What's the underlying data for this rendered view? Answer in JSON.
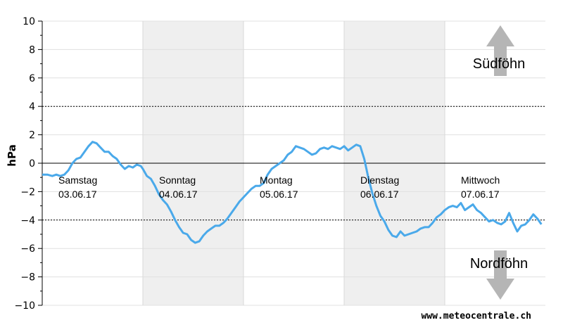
{
  "chart_data": {
    "type": "line",
    "ylabel": "hPa",
    "ylim": [
      -10,
      10
    ],
    "yticks": [
      10,
      8,
      6,
      4,
      2,
      0,
      -2,
      -4,
      -6,
      -8,
      -10
    ],
    "ytick_labels": [
      "10",
      "8",
      "6",
      "4",
      "2",
      "0",
      "−2",
      "−4",
      "−6",
      "−8",
      "−10"
    ],
    "xlim": [
      0,
      5
    ],
    "x_unit": "days",
    "grid": true,
    "reference_lines": [
      4,
      -4
    ],
    "shaded_days": [
      1,
      3
    ],
    "days": [
      {
        "name": "Samstag",
        "date": "03.06.17"
      },
      {
        "name": "Sonntag",
        "date": "04.06.17"
      },
      {
        "name": "Montag",
        "date": "05.06.17"
      },
      {
        "name": "Dienstag",
        "date": "06.06.17"
      },
      {
        "name": "Mittwoch",
        "date": "07.06.17"
      }
    ],
    "annotations": {
      "upper": "Südföhn",
      "lower": "Nordföhn"
    },
    "series": [
      {
        "color": "#4aa9ea",
        "points": [
          [
            0.0,
            -0.8
          ],
          [
            0.05,
            -0.8
          ],
          [
            0.1,
            -0.9
          ],
          [
            0.14,
            -0.8
          ],
          [
            0.18,
            -0.9
          ],
          [
            0.22,
            -0.8
          ],
          [
            0.26,
            -0.5
          ],
          [
            0.3,
            0.0
          ],
          [
            0.34,
            0.3
          ],
          [
            0.38,
            0.4
          ],
          [
            0.42,
            0.8
          ],
          [
            0.46,
            1.2
          ],
          [
            0.5,
            1.5
          ],
          [
            0.54,
            1.4
          ],
          [
            0.58,
            1.1
          ],
          [
            0.62,
            0.8
          ],
          [
            0.66,
            0.8
          ],
          [
            0.7,
            0.5
          ],
          [
            0.74,
            0.3
          ],
          [
            0.78,
            -0.1
          ],
          [
            0.82,
            -0.4
          ],
          [
            0.86,
            -0.2
          ],
          [
            0.9,
            -0.3
          ],
          [
            0.94,
            -0.1
          ],
          [
            0.98,
            -0.2
          ],
          [
            1.0,
            -0.4
          ],
          [
            1.04,
            -0.9
          ],
          [
            1.08,
            -1.1
          ],
          [
            1.12,
            -1.6
          ],
          [
            1.16,
            -2.2
          ],
          [
            1.2,
            -2.6
          ],
          [
            1.24,
            -2.9
          ],
          [
            1.28,
            -3.4
          ],
          [
            1.32,
            -4.0
          ],
          [
            1.36,
            -4.5
          ],
          [
            1.4,
            -4.9
          ],
          [
            1.44,
            -5.0
          ],
          [
            1.48,
            -5.4
          ],
          [
            1.52,
            -5.6
          ],
          [
            1.56,
            -5.5
          ],
          [
            1.6,
            -5.1
          ],
          [
            1.64,
            -4.8
          ],
          [
            1.68,
            -4.6
          ],
          [
            1.72,
            -4.4
          ],
          [
            1.76,
            -4.4
          ],
          [
            1.8,
            -4.2
          ],
          [
            1.84,
            -3.9
          ],
          [
            1.88,
            -3.5
          ],
          [
            1.92,
            -3.1
          ],
          [
            1.96,
            -2.7
          ],
          [
            2.0,
            -2.4
          ],
          [
            2.04,
            -2.1
          ],
          [
            2.08,
            -1.8
          ],
          [
            2.12,
            -1.6
          ],
          [
            2.16,
            -1.6
          ],
          [
            2.2,
            -1.4
          ],
          [
            2.24,
            -0.8
          ],
          [
            2.28,
            -0.4
          ],
          [
            2.32,
            -0.2
          ],
          [
            2.36,
            0.0
          ],
          [
            2.4,
            0.2
          ],
          [
            2.44,
            0.6
          ],
          [
            2.48,
            0.8
          ],
          [
            2.52,
            1.2
          ],
          [
            2.56,
            1.1
          ],
          [
            2.6,
            1.0
          ],
          [
            2.64,
            0.8
          ],
          [
            2.68,
            0.6
          ],
          [
            2.72,
            0.7
          ],
          [
            2.76,
            1.0
          ],
          [
            2.8,
            1.1
          ],
          [
            2.84,
            1.0
          ],
          [
            2.88,
            1.2
          ],
          [
            2.92,
            1.1
          ],
          [
            2.96,
            1.0
          ],
          [
            3.0,
            1.2
          ],
          [
            3.04,
            0.9
          ],
          [
            3.08,
            1.1
          ],
          [
            3.12,
            1.3
          ],
          [
            3.16,
            1.2
          ],
          [
            3.2,
            0.3
          ],
          [
            3.24,
            -1.0
          ],
          [
            3.28,
            -2.1
          ],
          [
            3.32,
            -3.0
          ],
          [
            3.36,
            -3.7
          ],
          [
            3.4,
            -4.1
          ],
          [
            3.44,
            -4.7
          ],
          [
            3.48,
            -5.1
          ],
          [
            3.52,
            -5.2
          ],
          [
            3.56,
            -4.8
          ],
          [
            3.6,
            -5.1
          ],
          [
            3.64,
            -5.0
          ],
          [
            3.68,
            -4.9
          ],
          [
            3.72,
            -4.8
          ],
          [
            3.76,
            -4.6
          ],
          [
            3.8,
            -4.5
          ],
          [
            3.84,
            -4.5
          ],
          [
            3.88,
            -4.2
          ],
          [
            3.92,
            -3.8
          ],
          [
            3.96,
            -3.6
          ],
          [
            4.0,
            -3.3
          ],
          [
            4.04,
            -3.1
          ],
          [
            4.08,
            -3.0
          ],
          [
            4.12,
            -3.1
          ],
          [
            4.16,
            -2.8
          ],
          [
            4.2,
            -3.3
          ],
          [
            4.24,
            -3.1
          ],
          [
            4.28,
            -2.9
          ],
          [
            4.32,
            -3.3
          ],
          [
            4.36,
            -3.5
          ],
          [
            4.4,
            -3.8
          ],
          [
            4.44,
            -4.1
          ],
          [
            4.48,
            -4.0
          ],
          [
            4.52,
            -4.2
          ],
          [
            4.56,
            -4.3
          ],
          [
            4.6,
            -4.1
          ],
          [
            4.64,
            -3.5
          ],
          [
            4.68,
            -4.2
          ],
          [
            4.72,
            -4.8
          ],
          [
            4.76,
            -4.4
          ],
          [
            4.8,
            -4.3
          ],
          [
            4.84,
            -4.0
          ],
          [
            4.88,
            -3.6
          ],
          [
            4.92,
            -3.9
          ],
          [
            4.96,
            -4.3
          ]
        ]
      }
    ]
  },
  "watermark": "www.meteocentrale.ch"
}
